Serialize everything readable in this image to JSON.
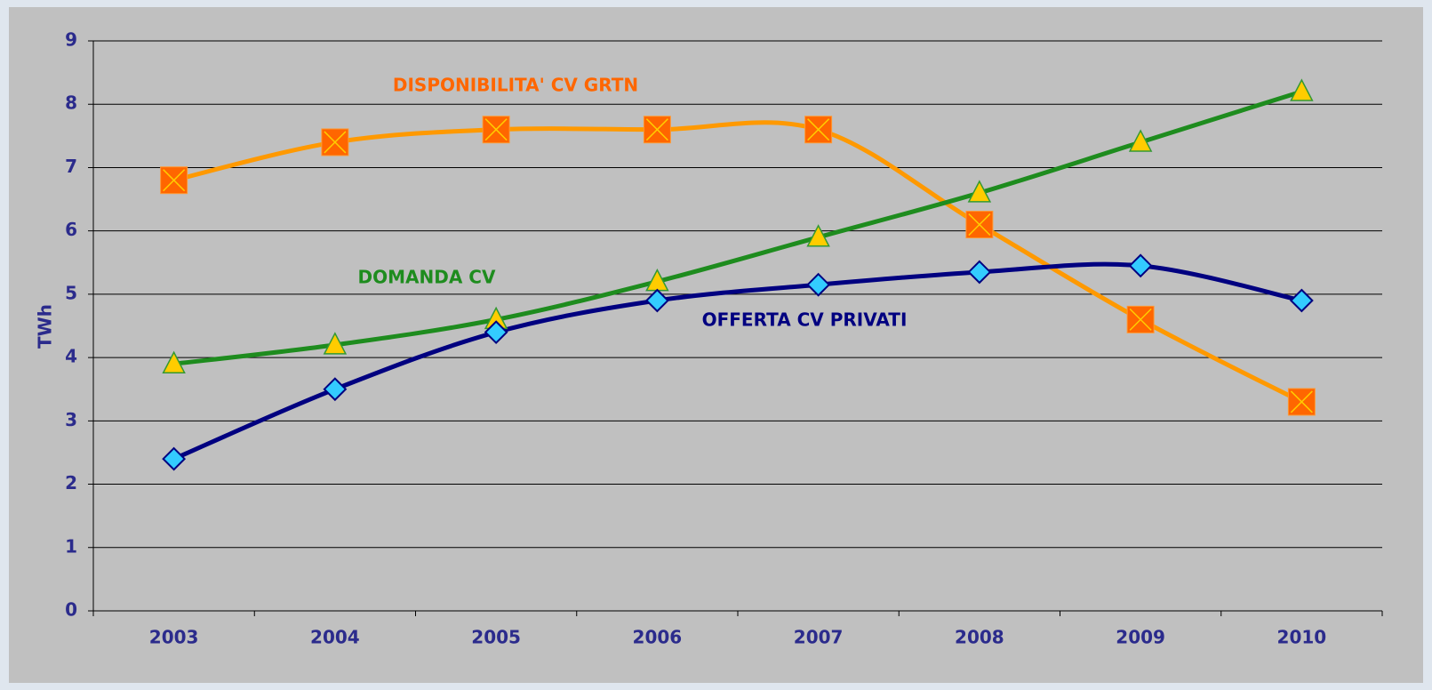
{
  "chart_data": {
    "type": "line",
    "y_label": "TWh",
    "categories": [
      "2003",
      "2004",
      "2005",
      "2006",
      "2007",
      "2008",
      "2009",
      "2010"
    ],
    "series": [
      {
        "name": "DISPONIBILITA' CV GRTN",
        "color": "#ff9900",
        "values": [
          6.8,
          7.4,
          7.6,
          7.6,
          7.6,
          6.1,
          4.6,
          3.3
        ]
      },
      {
        "name": "DOMANDA CV",
        "color": "#1e8c1e",
        "values": [
          3.9,
          4.2,
          4.6,
          5.2,
          5.9,
          6.6,
          7.4,
          8.2
        ]
      },
      {
        "name": "OFFERTA CV PRIVATI",
        "color": "#000080",
        "values": [
          2.4,
          3.5,
          4.4,
          4.9,
          5.15,
          5.35,
          5.45,
          4.9
        ]
      }
    ],
    "ylim": [
      0,
      9
    ],
    "yticks": [
      0,
      1,
      2,
      3,
      4,
      5,
      6,
      7,
      8,
      9
    ],
    "grid": true
  }
}
